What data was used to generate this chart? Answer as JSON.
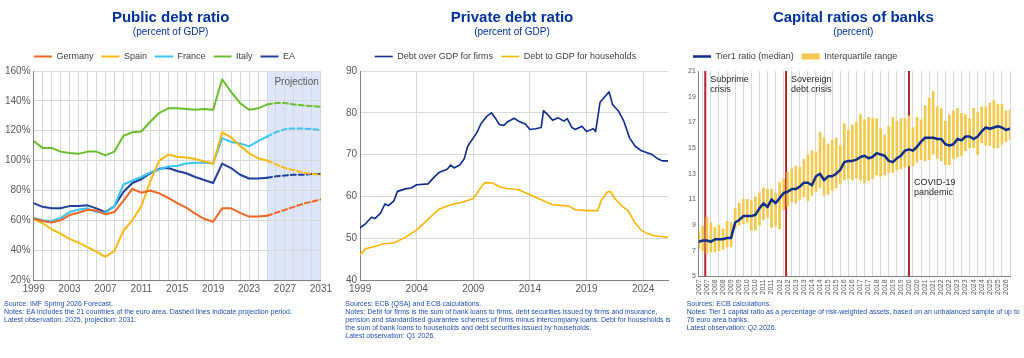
{
  "chart_data": [
    {
      "type": "line",
      "title": "Public debt ratio",
      "subtitle": "(percent of GDP)",
      "x": [
        1999,
        2000,
        2001,
        2002,
        2003,
        2004,
        2005,
        2006,
        2007,
        2008,
        2009,
        2010,
        2011,
        2012,
        2013,
        2014,
        2015,
        2016,
        2017,
        2018,
        2019,
        2020,
        2021,
        2022,
        2023,
        2024,
        2025
      ],
      "series": [
        {
          "name": "Germany",
          "color": "#f26522",
          "values": [
            61,
            59.5,
            58.5,
            60,
            63.5,
            65,
            67,
            66.5,
            64,
            65.5,
            73,
            81,
            78.5,
            80,
            78,
            75,
            71.5,
            68.5,
            64.5,
            61,
            59,
            68,
            68,
            65,
            62.5,
            62.5,
            63
          ]
        },
        {
          "name": "Spain",
          "color": "#fdb913",
          "values": [
            61,
            58,
            54,
            51,
            47.5,
            45,
            42,
            39,
            35.5,
            39.5,
            53,
            60,
            69.5,
            86,
            100,
            104,
            102.5,
            102,
            101,
            99.5,
            98,
            119,
            115.5,
            110,
            105,
            101.5,
            100
          ]
        },
        {
          "name": "France",
          "color": "#3cc3f0",
          "values": [
            61.5,
            60,
            59.5,
            61.5,
            65.5,
            67,
            68,
            65.5,
            65,
            69.5,
            84,
            86.5,
            89,
            92,
            94,
            96,
            96.5,
            98,
            98.5,
            98.5,
            98,
            115,
            112.5,
            111.5,
            109.5,
            113,
            116
          ]
        },
        {
          "name": "Italy",
          "color": "#6cbd2c",
          "values": [
            113,
            108.5,
            108.5,
            106,
            105,
            104.5,
            106,
            106,
            103.5,
            106,
            116.5,
            119,
            119.5,
            126,
            132,
            135,
            135,
            134.5,
            134,
            134.5,
            134,
            154.5,
            146,
            138.5,
            134,
            135,
            137.5
          ]
        },
        {
          "name": "EA",
          "color": "#1f3f99",
          "values": [
            71.5,
            69,
            68,
            68,
            69.5,
            69.5,
            70,
            68,
            65.5,
            69.5,
            79,
            85,
            87.5,
            91.5,
            94.5,
            95,
            93,
            91.5,
            89,
            87,
            85,
            98,
            95,
            90.5,
            88,
            88,
            88.5
          ]
        },
        {
          "color": "#f26522",
          "line_style": "dashed",
          "x": [
            2025,
            2026,
            2027,
            2028,
            2029,
            2030,
            2031
          ],
          "values": [
            63,
            65,
            67,
            69,
            71,
            72.5,
            74
          ]
        },
        {
          "color": "#fdb913",
          "line_style": "dashed",
          "x": [
            2025,
            2026,
            2027,
            2028,
            2029,
            2030,
            2031
          ],
          "values": [
            100,
            97.5,
            95,
            93.5,
            92,
            91,
            90.5
          ]
        },
        {
          "color": "#3cc3f0",
          "line_style": "dashed",
          "x": [
            2025,
            2026,
            2027,
            2028,
            2029,
            2030,
            2031
          ],
          "values": [
            116,
            119,
            121,
            121.5,
            121.5,
            121,
            120.5
          ]
        },
        {
          "color": "#6cbd2c",
          "line_style": "dashed",
          "x": [
            2025,
            2026,
            2027,
            2028,
            2029,
            2030,
            2031
          ],
          "values": [
            137.5,
            138.5,
            138.5,
            137.5,
            137,
            136.5,
            136
          ]
        },
        {
          "color": "#1f3f99",
          "line_style": "dashed",
          "x": [
            2025,
            2026,
            2027,
            2028,
            2029,
            2030,
            2031
          ],
          "values": [
            88.5,
            89.5,
            90,
            90.5,
            90.5,
            91,
            91
          ]
        }
      ],
      "xlim": [
        1999,
        2031
      ],
      "xticks": [
        1999,
        {
          "value": 2000,
          "label": null
        },
        {
          "value": 2001,
          "label": null
        },
        {
          "value": 2002,
          "label": null
        },
        2003,
        {
          "value": 2004,
          "label": null
        },
        {
          "value": 2005,
          "label": null
        },
        {
          "value": 2006,
          "label": null
        },
        2007,
        {
          "value": 2008,
          "label": null
        },
        {
          "value": 2009,
          "label": null
        },
        {
          "value": 2010,
          "label": null
        },
        2011,
        {
          "value": 2012,
          "label": null
        },
        {
          "value": 2013,
          "label": null
        },
        {
          "value": 2014,
          "label": null
        },
        2015,
        {
          "value": 2016,
          "label": null
        },
        {
          "value": 2017,
          "label": null
        },
        {
          "value": 2018,
          "label": null
        },
        2019,
        {
          "value": 2020,
          "label": null
        },
        {
          "value": 2021,
          "label": null
        },
        {
          "value": 2022,
          "label": null
        },
        2023,
        {
          "value": 2024,
          "label": null
        },
        {
          "value": 2025,
          "label": null
        },
        {
          "value": 2026,
          "label": null
        },
        2027,
        {
          "value": 2028,
          "label": null
        },
        {
          "value": 2029,
          "label": null
        },
        {
          "value": 2030,
          "label": null
        },
        2031
      ],
      "ylim": [
        20,
        160
      ],
      "yticks": [
        {
          "value": 20,
          "label": "20%"
        },
        {
          "value": 40,
          "label": "40%"
        },
        {
          "value": 60,
          "label": "60%"
        },
        {
          "value": 80,
          "label": "80%"
        },
        {
          "value": 100,
          "label": "100%"
        },
        {
          "value": 120,
          "label": "120%"
        },
        {
          "value": 140,
          "label": "140%"
        },
        {
          "value": 160,
          "label": "160%"
        }
      ],
      "bands": [
        {
          "axis": "x",
          "from": 2025,
          "to": 2031,
          "label": "Projection",
          "color": "#dde6fb"
        }
      ],
      "grid": true,
      "legend": "top",
      "annotations": [
        "Source: IMF Spring 2026 Forecast.",
        "Notes: EA includes the 21 countries of the euro area. Dashed lines indicate projection period.",
        "Latest observation: 2025, projection: 2031."
      ]
    },
    {
      "type": "line",
      "title": "Private debt ratio",
      "subtitle": "(percent of GDP)",
      "series": [
        {
          "name": "Debt over GDP for firms",
          "color": "#0d2a8f",
          "x": [
            1999,
            1999.5,
            2000,
            2000.3,
            2000.8,
            2001.2,
            2001.5,
            2002,
            2002.3,
            2003,
            2003.5,
            2004,
            2005,
            2005.5,
            2006,
            2006.7,
            2007,
            2007.3,
            2007.8,
            2008.2,
            2008.5,
            2009,
            2009.3,
            2009.7,
            2010.2,
            2010.6,
            2011,
            2011.3,
            2011.7,
            2012,
            2012.6,
            2013,
            2013.6,
            2014,
            2014.5,
            2015,
            2015.2,
            2015.6,
            2016,
            2016.5,
            2017,
            2017.3,
            2017.7,
            2018,
            2018.6,
            2019,
            2019.6,
            2019.8,
            2020.2,
            2020.5,
            2021,
            2021.3,
            2021.8,
            2022.3,
            2022.8,
            2023.3,
            2023.8,
            2024.3,
            2024.8,
            2025.3,
            2025.7,
            2026.2
          ],
          "values": [
            52.5,
            53.5,
            55,
            54.7,
            56,
            58.2,
            57.8,
            59,
            61.2,
            61.8,
            62,
            62.8,
            63,
            64.5,
            65.8,
            66.5,
            67.5,
            66.8,
            67.5,
            69,
            72,
            74,
            75.2,
            77.5,
            79.2,
            80,
            78.5,
            77.2,
            77,
            77.8,
            78.7,
            78,
            77.3,
            76,
            76.2,
            76.5,
            80.5,
            79.5,
            78.2,
            78.8,
            78,
            78.6,
            76.5,
            76,
            76.8,
            75.5,
            76.2,
            75.5,
            82.5,
            83.5,
            85,
            82,
            80.5,
            78,
            74,
            72,
            71,
            70.5,
            70,
            69,
            68.5,
            68.5
          ]
        },
        {
          "name": "Debt to GDP for households",
          "color": "#ffb400",
          "x": [
            1999,
            1999.5,
            2000.3,
            2001,
            2002,
            2003,
            2004,
            2005,
            2006,
            2007,
            2008,
            2009,
            2009.5,
            2010,
            2010.7,
            2011.3,
            2012,
            2013,
            2014,
            2015,
            2016,
            2017,
            2017.5,
            2018,
            2019,
            2020,
            2020.3,
            2020.8,
            2021.1,
            2021.5,
            2022,
            2022.7,
            2023.2,
            2023.8,
            2024.3,
            2025,
            2025.6,
            2026.2
          ],
          "values": [
            46,
            47.5,
            48,
            48.6,
            48.9,
            50.2,
            52,
            54.5,
            57,
            58,
            58.6,
            59.5,
            61.5,
            63.3,
            63.2,
            62.3,
            61.9,
            61.6,
            60.4,
            59.2,
            58,
            57.8,
            57.6,
            56.8,
            56.6,
            56.6,
            59,
            61,
            61.2,
            59.5,
            58,
            56.5,
            54,
            52,
            51.2,
            50.6,
            50.4,
            50.2
          ]
        }
      ],
      "xlim": [
        1999,
        2026.2
      ],
      "xticks": [
        1999,
        2004,
        2009,
        2014,
        2019,
        2024
      ],
      "ylim": [
        40,
        90
      ],
      "yticks": [
        40,
        50,
        60,
        70,
        80,
        90
      ],
      "grid": true,
      "legend": "top",
      "annotations": [
        "Sources: ECB (QSA) and ECB calculations.",
        "Notes: Debt for firms is the sum of bank loans to firms, debt securities issued by firms and insurance, pension and standardised guarantee schemes of firms minus intercompany loans. Debt for households is the sum of bank loans to households and debt securities issued by households.",
        "Latest observation: Q1 2026."
      ]
    },
    {
      "type": "bar",
      "title": "Capital ratios of banks",
      "subtitle": "(percent)",
      "x": [
        2007,
        2007.25,
        2007.5,
        2007.75,
        2008,
        2008.25,
        2008.5,
        2008.75,
        2009,
        2009.25,
        2009.5,
        2009.75,
        2010,
        2010.25,
        2010.5,
        2010.75,
        2011,
        2011.25,
        2011.5,
        2011.75,
        2012,
        2012.25,
        2012.5,
        2012.75,
        2013,
        2013.25,
        2013.5,
        2013.75,
        2014,
        2014.25,
        2014.5,
        2014.75,
        2015,
        2015.25,
        2015.5,
        2015.75,
        2016,
        2016.25,
        2016.5,
        2016.75,
        2017,
        2017.25,
        2017.5,
        2017.75,
        2018,
        2018.25,
        2018.5,
        2018.75,
        2019,
        2019.25,
        2019.5,
        2019.75,
        2020,
        2020.25,
        2020.5,
        2020.75,
        2021,
        2021.25,
        2021.5,
        2021.75,
        2022,
        2022.25,
        2022.5,
        2022.75,
        2023,
        2023.25,
        2023.5,
        2023.75,
        2024,
        2024.25,
        2024.5,
        2024.75,
        2025,
        2025.25,
        2025.5,
        2025.75,
        2026,
        2026.25
      ],
      "series": [
        {
          "name": "Tier1 ratio (median)",
          "type": "line",
          "color": "#0d2f8c",
          "values": [
            7.7,
            7.8,
            7.8,
            7.7,
            7.9,
            7.9,
            7.9,
            8.0,
            8.0,
            9.2,
            9.4,
            9.7,
            9.7,
            9.7,
            9.8,
            10.3,
            10.7,
            10.4,
            11.0,
            10.7,
            11.1,
            11.5,
            11.6,
            11.8,
            11.8,
            12.0,
            12.3,
            12.3,
            12.1,
            12.8,
            13.0,
            12.5,
            12.8,
            12.8,
            13.0,
            13.3,
            13.9,
            14.0,
            14.0,
            14.1,
            14.3,
            14.4,
            14.2,
            14.3,
            14.6,
            14.5,
            14.4,
            14.0,
            13.9,
            14.2,
            14.4,
            14.8,
            14.9,
            14.8,
            15.1,
            15.5,
            15.8,
            15.8,
            15.8,
            15.7,
            15.7,
            15.3,
            15.2,
            15.3,
            15.7,
            15.6,
            15.9,
            15.9,
            15.7,
            15.9,
            16.3,
            16.6,
            16.5,
            16.6,
            16.7,
            16.6,
            16.4,
            16.5
          ]
        },
        {
          "name": "Interquartile range",
          "color": "#f2c94c",
          "base": [
            7.2,
            7.0,
            6.8,
            6.9,
            6.9,
            7.0,
            7.1,
            7.3,
            7.3,
            8.8,
            9.0,
            9.1,
            9.2,
            8.6,
            8.6,
            9.0,
            9.4,
            9.6,
            8.8,
            8.9,
            8.7,
            10.2,
            10.5,
            10.8,
            10.7,
            11.0,
            11.2,
            10.9,
            11.3,
            11.6,
            11.9,
            11.3,
            11.4,
            11.7,
            11.9,
            12.2,
            12.5,
            12.6,
            12.5,
            12.7,
            12.5,
            12.3,
            12.5,
            12.6,
            12.9,
            12.8,
            12.9,
            13.1,
            13.1,
            13.3,
            13.4,
            13.5,
            13.6,
            13.6,
            13.9,
            14.1,
            14.0,
            14.1,
            14.5,
            14.2,
            14.0,
            13.7,
            13.7,
            14.2,
            14.3,
            14.4,
            14.8,
            15.0,
            15.0,
            14.5,
            15.4,
            15.2,
            15.2,
            15.0,
            15.0,
            15.3,
            15.5,
            15.7
          ],
          "values": [
            1.3,
            1.9,
            2.8,
            2.3,
            1.9,
            2.0,
            1.6,
            2.0,
            1.9,
            1.5,
            1.7,
            1.9,
            1.8,
            2.3,
            2.6,
            2.5,
            2.5,
            2.2,
            3.0,
            2.6,
            3.6,
            2.4,
            2.6,
            2.6,
            2.9,
            2.5,
            2.9,
            3.6,
            3.5,
            3.1,
            4.3,
            4.5,
            3.9,
            3.9,
            3.9,
            3.0,
            4.4,
            3.8,
            4.3,
            4.3,
            5.1,
            4.9,
            4.9,
            4.7,
            4.4,
            3.7,
            3.1,
            3.6,
            4.3,
            3.8,
            3.9,
            3.8,
            3.9,
            3.0,
            3.5,
            3.1,
            4.3,
            4.8,
            4.9,
            4.0,
            4.1,
            3.4,
            3.9,
            3.7,
            3.8,
            3.3,
            2.8,
            2.3,
            3.1,
            3.3,
            2.8,
            3.0,
            3.3,
            3.7,
            3.4,
            3.1,
            2.4,
            2.3
          ]
        }
      ],
      "xlim": [
        2007,
        2026.25
      ],
      "xticks": [
        2007,
        {
          "value": 2007.5,
          "label": "2007"
        },
        2008,
        {
          "value": 2008.5,
          "label": "2008"
        },
        2009,
        {
          "value": 2009.5,
          "label": "2009"
        },
        2010,
        {
          "value": 2010.5,
          "label": "2010"
        },
        2011,
        {
          "value": 2011.5,
          "label": "2011"
        },
        2012,
        {
          "value": 2012.5,
          "label": "2012"
        },
        2013,
        {
          "value": 2013.5,
          "label": "2013"
        },
        2014,
        {
          "value": 2014.5,
          "label": "2014"
        },
        2015,
        {
          "value": 2015.5,
          "label": "2015"
        },
        2016,
        {
          "value": 2016.5,
          "label": "2016"
        },
        2017,
        {
          "value": 2017.5,
          "label": "2017"
        },
        2018,
        {
          "value": 2018.5,
          "label": "2018"
        },
        2019,
        {
          "value": 2019.5,
          "label": "2019"
        },
        2020,
        {
          "value": 2020.5,
          "label": "2020"
        },
        2021,
        {
          "value": 2021.5,
          "label": "2021"
        },
        2022,
        {
          "value": 2022.5,
          "label": "2022"
        },
        2023,
        {
          "value": 2023.5,
          "label": "2023"
        },
        2024,
        {
          "value": 2024.5,
          "label": "2024"
        },
        2025,
        {
          "value": 2025.5,
          "label": "2025"
        },
        2026
      ],
      "ylim": [
        5,
        21
      ],
      "yticks": [
        5,
        7,
        9,
        11,
        13,
        15,
        17,
        19,
        21
      ],
      "ref_lines": [
        {
          "axis": "x",
          "value": 2007.4,
          "color": "#b5212a"
        },
        {
          "axis": "x",
          "value": 2012.4,
          "color": "#b5212a"
        },
        {
          "axis": "x",
          "value": 2020,
          "color": "#b5212a"
        }
      ],
      "grid": "x",
      "legend": "top left",
      "annotations": [
        {
          "text": "Subprime crisis",
          "x": 2007.4,
          "y": 21
        },
        {
          "text": "Sovereign debt crisis",
          "x": 2012.4,
          "y": 21
        },
        {
          "text": "COVID-19 pandemic",
          "x": 2020,
          "y": 13
        },
        "Sources: ECB calculations.",
        "Notes: Tier 1 capital ratio as a percentage of risk-weighted assets, based on an unbalanced sample of up to 76 euro area banks.",
        "Latest observation: Q2 2026."
      ]
    }
  ]
}
